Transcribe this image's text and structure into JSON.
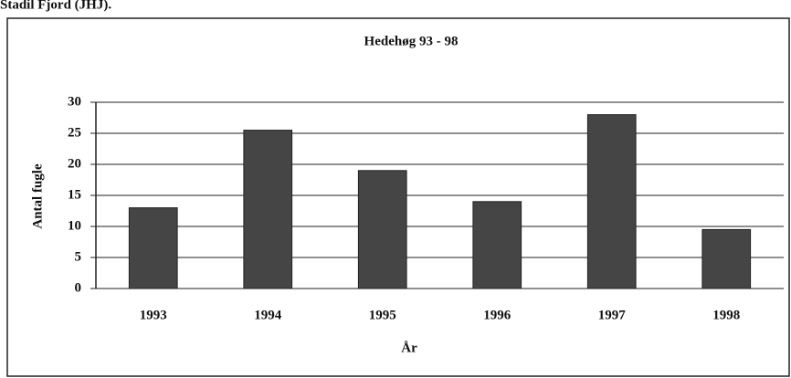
{
  "caption": "Stadil Fjord (JHJ).",
  "chart_data": {
    "type": "bar",
    "title": "Hedehøg 93 - 98",
    "categories": [
      "1993",
      "1994",
      "1995",
      "1996",
      "1997",
      "1998"
    ],
    "values": [
      13,
      25.5,
      19,
      14,
      28,
      9.5
    ],
    "color": "#454545",
    "xlabel": "År",
    "ylabel": "Antal fugle",
    "ylim": [
      0,
      30
    ],
    "yticks": [
      0,
      5,
      10,
      15,
      20,
      25,
      30
    ],
    "grid": true
  }
}
